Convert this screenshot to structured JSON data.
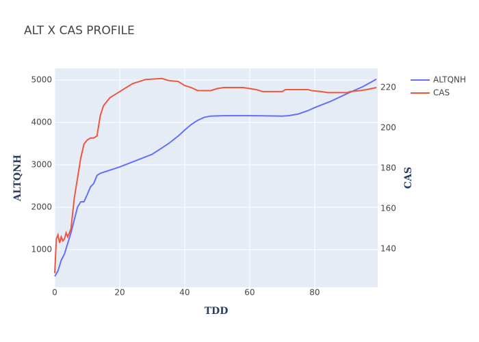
{
  "chart_data": {
    "type": "line",
    "title": "ALT X CAS PROFILE",
    "x_label": "TDD",
    "y_label": "ALTQNH",
    "y2_label": "CAS",
    "xlim": [
      0,
      99.4
    ],
    "xticks": [
      0,
      20,
      40,
      60,
      80
    ],
    "ylim": [
      113,
      5274
    ],
    "yticks": [
      1000,
      2000,
      3000,
      4000,
      5000
    ],
    "y2lim": [
      121,
      229.5
    ],
    "y2ticks": [
      140,
      160,
      180,
      200,
      220
    ],
    "grid": true,
    "legend": "top-right",
    "series": [
      {
        "name": "ALTQNH",
        "color": "#636efa",
        "x": [
          0,
          1,
          2,
          3,
          4,
          5,
          6,
          7,
          8,
          9,
          10,
          11,
          12,
          13,
          14,
          16,
          20,
          25,
          30,
          32,
          35,
          38,
          40,
          42,
          44,
          46,
          48,
          52,
          60,
          70,
          72,
          75,
          78,
          80,
          85,
          90,
          95,
          99
        ],
        "values": [
          370,
          500,
          750,
          900,
          1150,
          1400,
          1700,
          2000,
          2130,
          2130,
          2300,
          2480,
          2560,
          2750,
          2800,
          2850,
          2950,
          3100,
          3250,
          3350,
          3500,
          3680,
          3820,
          3950,
          4050,
          4120,
          4150,
          4160,
          4160,
          4150,
          4160,
          4200,
          4280,
          4350,
          4500,
          4680,
          4850,
          5020
        ]
      },
      {
        "name": "CAS",
        "color": "#ef553b",
        "axis": "y2",
        "x": [
          0,
          0.5,
          1,
          1.5,
          2,
          2.5,
          3,
          3.5,
          4,
          5,
          6,
          7,
          8,
          9,
          10,
          11,
          12,
          13,
          14,
          15,
          16,
          17,
          18,
          20,
          22,
          24,
          26,
          28,
          33,
          34,
          35,
          38,
          40,
          42,
          44,
          48,
          50,
          52,
          58,
          60,
          62,
          64,
          70,
          71,
          78,
          79,
          82,
          84,
          90,
          91,
          94,
          96,
          99
        ],
        "values": [
          128,
          145,
          147,
          143,
          146,
          144,
          145,
          148,
          146,
          150,
          165,
          175,
          185,
          192,
          194,
          195,
          195,
          196,
          206,
          211,
          213,
          215,
          216,
          218,
          220,
          222,
          223,
          224,
          224.5,
          224,
          223.5,
          223,
          221,
          220,
          218.5,
          218.5,
          219.5,
          220,
          220,
          219.5,
          219,
          218,
          218,
          219,
          219,
          218.5,
          218,
          217.5,
          217.5,
          218,
          218.5,
          219,
          220
        ]
      }
    ]
  }
}
